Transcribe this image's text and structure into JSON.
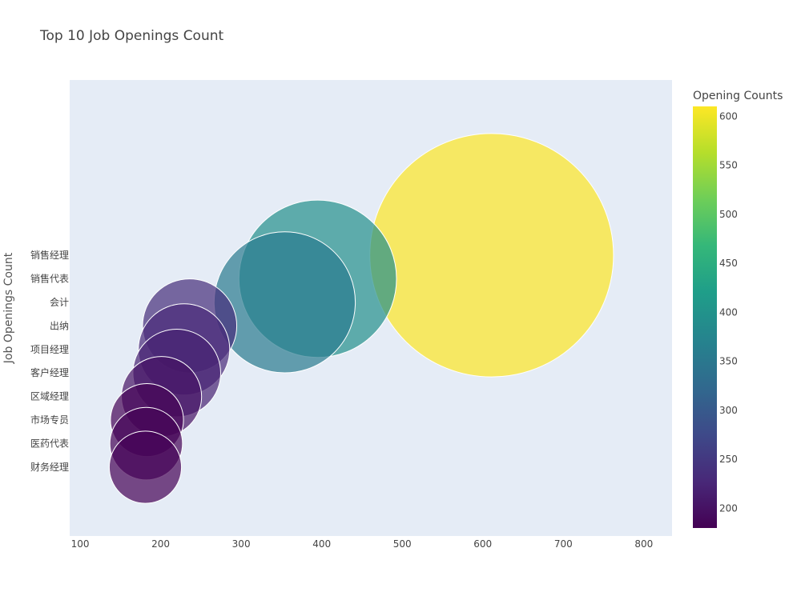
{
  "chart_data": {
    "type": "scatter",
    "subtype": "bubble",
    "title": "Top 10 Job Openings Count",
    "xlabel": "",
    "ylabel": "Job Openings Count",
    "xlim": [
      87,
      835
    ],
    "x_ticks": [
      100,
      200,
      300,
      400,
      500,
      600,
      700,
      800
    ],
    "grid": false,
    "colorscale": "viridis",
    "colorbar": {
      "title": "Opening Counts",
      "range": [
        180,
        610
      ],
      "ticks": [
        200,
        250,
        300,
        350,
        400,
        450,
        500,
        550,
        600
      ]
    },
    "categories": [
      "财务经理",
      "医药代表",
      "市场专员",
      "区域经理",
      "客户经理",
      "项目经理",
      "出纳",
      "会计",
      "销售代表",
      "销售经理"
    ],
    "points": [
      {
        "category": "销售经理",
        "x": 611,
        "size": 611
      },
      {
        "category": "销售代表",
        "x": 395,
        "size": 395
      },
      {
        "category": "会计",
        "x": 354,
        "size": 354
      },
      {
        "category": "出纳",
        "x": 236,
        "size": 236
      },
      {
        "category": "项目经理",
        "x": 229,
        "size": 229
      },
      {
        "category": "客户经理",
        "x": 220,
        "size": 220
      },
      {
        "category": "区域经理",
        "x": 201,
        "size": 201
      },
      {
        "category": "市场专员",
        "x": 183,
        "size": 183
      },
      {
        "category": "医药代表",
        "x": 182,
        "size": 182
      },
      {
        "category": "财务经理",
        "x": 181,
        "size": 181
      }
    ]
  }
}
